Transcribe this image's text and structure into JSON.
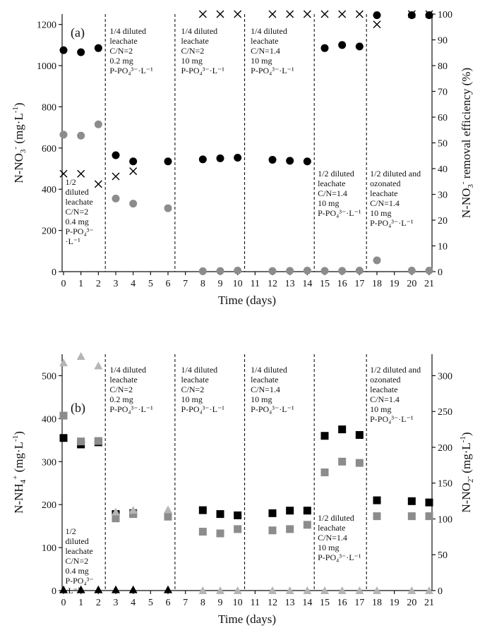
{
  "chart_data": [
    {
      "panel": "a",
      "type": "scatter",
      "panel_label": "(a)",
      "xlabel": "Time (days)",
      "ylabel": "N-NO3- (mg·L-1)",
      "ylabel_right": "N-NO3- removal efficiency (%)",
      "xlim": [
        0,
        21
      ],
      "xticks": [
        0,
        1,
        2,
        3,
        4,
        5,
        6,
        7,
        8,
        9,
        10,
        11,
        12,
        13,
        14,
        15,
        16,
        17,
        18,
        19,
        20,
        21
      ],
      "ylim": [
        0,
        1250
      ],
      "yticks": [
        0,
        200,
        400,
        600,
        800,
        1000,
        1200
      ],
      "ylim_right": [
        0,
        100
      ],
      "yticks_right": [
        0,
        10,
        20,
        30,
        40,
        50,
        60,
        70,
        80,
        90,
        100
      ],
      "separators": [
        2.4,
        6.4,
        10.4,
        14.4,
        17.4
      ],
      "series": [
        {
          "marker": "circle",
          "color": "#000000",
          "axis": "left",
          "x": [
            0,
            1,
            2,
            3,
            4,
            6,
            8,
            9,
            10,
            12,
            13,
            14,
            15,
            16,
            17,
            18,
            20,
            21
          ],
          "y": [
            1075,
            1065,
            1085,
            565,
            535,
            535,
            545,
            550,
            553,
            543,
            538,
            535,
            1085,
            1100,
            1093,
            1245,
            1245,
            1245
          ]
        },
        {
          "marker": "circle",
          "color": "#8c8c8c",
          "axis": "left",
          "x": [
            0,
            1,
            2,
            3,
            4,
            6,
            8,
            9,
            10,
            12,
            13,
            14,
            15,
            16,
            17,
            18,
            20,
            21
          ],
          "y": [
            665,
            660,
            715,
            355,
            330,
            308,
            2,
            3,
            5,
            3,
            4,
            5,
            4,
            4,
            5,
            55,
            5,
            5
          ]
        },
        {
          "marker": "cross",
          "color": "#000000",
          "axis": "right",
          "x": [
            0,
            1,
            2,
            3,
            4,
            8,
            9,
            10,
            12,
            13,
            14,
            15,
            16,
            17,
            18,
            20,
            21
          ],
          "y": [
            38,
            38,
            34,
            37,
            39,
            100,
            100,
            100,
            100,
            100,
            100,
            100,
            100,
            100,
            96,
            100,
            100
          ]
        }
      ],
      "annotations": [
        {
          "x": 0.1,
          "lines": [
            "1/2",
            "diluted",
            "leachate",
            "C/N=2",
            "",
            "0.4 mg",
            "P-PO4³⁻",
            "·L⁻¹"
          ]
        },
        {
          "x": 2.65,
          "lines": [
            "1/4 diluted",
            "leachate",
            "C/N=2",
            "0.2 mg",
            "P-PO4³⁻·L⁻¹"
          ]
        },
        {
          "x": 6.75,
          "lines": [
            "1/4 diluted",
            "leachate",
            "C/N=2",
            "10 mg",
            "P-PO4³⁻·L⁻¹"
          ]
        },
        {
          "x": 10.75,
          "lines": [
            "1/4 diluted",
            "leachate",
            "C/N=1.4",
            "10 mg",
            "P-PO4³⁻·L⁻¹"
          ]
        },
        {
          "x": 14.6,
          "lines": [
            "1/2 diluted",
            "leachate",
            "C/N=1.4",
            "10 mg",
            "P-PO4³⁻·L⁻¹"
          ]
        },
        {
          "x": 17.6,
          "lines": [
            "1/2 diluted and",
            "ozonated",
            "leachate",
            "C/N=1.4",
            "10 mg",
            "P-PO4³⁻·L⁻¹"
          ]
        }
      ]
    },
    {
      "panel": "b",
      "type": "scatter",
      "panel_label": "(b)",
      "xlabel": "Time (days)",
      "ylabel": "N-NH4+ (mg·L-1)",
      "ylabel_right": "N-NO2- (mg·L-1)",
      "xlim": [
        0,
        21
      ],
      "xticks": [
        0,
        1,
        2,
        3,
        4,
        5,
        6,
        7,
        8,
        9,
        10,
        11,
        12,
        13,
        14,
        15,
        16,
        17,
        18,
        19,
        20,
        21
      ],
      "ylim": [
        0,
        550
      ],
      "yticks": [
        0,
        100,
        200,
        300,
        400,
        500
      ],
      "ylim_right": [
        0,
        330
      ],
      "yticks_right": [
        0,
        50,
        100,
        150,
        200,
        250,
        300
      ],
      "separators": [
        2.4,
        6.4,
        10.4,
        14.4,
        17.4
      ],
      "series": [
        {
          "marker": "square",
          "color": "#000000",
          "axis": "left",
          "x": [
            0,
            1,
            2,
            3,
            4,
            6,
            8,
            9,
            10,
            12,
            13,
            14,
            15,
            16,
            17,
            18,
            20,
            21
          ],
          "y": [
            355,
            340,
            345,
            178,
            180,
            173,
            187,
            178,
            175,
            180,
            186,
            186,
            360,
            375,
            362,
            210,
            208,
            205
          ]
        },
        {
          "marker": "square",
          "color": "#8c8c8c",
          "axis": "left",
          "x": [
            0,
            1,
            2,
            3,
            4,
            6,
            8,
            9,
            10,
            12,
            13,
            14,
            15,
            16,
            17,
            18,
            20,
            21
          ],
          "y": [
            407,
            347,
            348,
            168,
            178,
            172,
            137,
            133,
            143,
            140,
            143,
            153,
            275,
            300,
            297,
            173,
            173,
            173
          ]
        },
        {
          "marker": "triangle",
          "color": "#b5b5b5",
          "axis": "left",
          "x": [
            0,
            1,
            2,
            3,
            4,
            6
          ],
          "y": [
            530,
            545,
            523,
            183,
            187,
            188
          ]
        },
        {
          "marker": "triangle",
          "color": "#000000",
          "axis": "left",
          "x": [
            0,
            1,
            2,
            3,
            4,
            6
          ],
          "y": [
            2,
            2,
            2,
            2,
            2,
            2
          ]
        },
        {
          "marker": "triangle",
          "color": "#b5b5b5",
          "axis": "right",
          "x": [
            8,
            9,
            10,
            12,
            13,
            14,
            15,
            16,
            17,
            18,
            20,
            21
          ],
          "y": [
            0,
            0,
            0,
            0,
            0,
            0,
            0,
            0,
            0,
            0,
            0,
            0
          ]
        }
      ],
      "annotations": [
        {
          "x": 0.1,
          "lines": [
            "1/2",
            "diluted",
            "leachate",
            "C/N=2",
            "",
            "0.4 mg",
            "P-PO4³⁻",
            "·L⁻¹"
          ]
        },
        {
          "x": 2.65,
          "lines": [
            "1/4 diluted",
            "leachate",
            "C/N=2",
            "0.2 mg",
            "P-PO4³⁻·L⁻¹"
          ]
        },
        {
          "x": 6.75,
          "lines": [
            "1/4 diluted",
            "leachate",
            "C/N=2",
            "10 mg",
            "P-PO4³⁻·L⁻¹"
          ]
        },
        {
          "x": 10.75,
          "lines": [
            "1/4 diluted",
            "leachate",
            "C/N=1.4",
            "10 mg",
            "P-PO4³⁻·L⁻¹"
          ]
        },
        {
          "x": 14.6,
          "lines": [
            "1/2 diluted",
            "leachate",
            "C/N=1.4",
            "10 mg",
            "P-PO4³⁻·L⁻¹"
          ]
        },
        {
          "x": 17.6,
          "lines": [
            "1/2 diluted and",
            "ozonated",
            "leachate",
            "C/N=1.4",
            "10 mg",
            "P-PO4³⁻·L⁻¹"
          ]
        }
      ]
    }
  ]
}
